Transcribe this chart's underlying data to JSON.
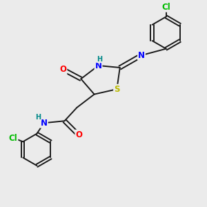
{
  "bg_color": "#ebebeb",
  "bond_color": "#1a1a1a",
  "colors": {
    "O": "#ff0000",
    "N": "#0000ff",
    "S": "#bbbb00",
    "Cl": "#00bb00",
    "H": "#008888",
    "C": "#1a1a1a"
  },
  "font_size": 8.5,
  "font_size_small": 7.0
}
